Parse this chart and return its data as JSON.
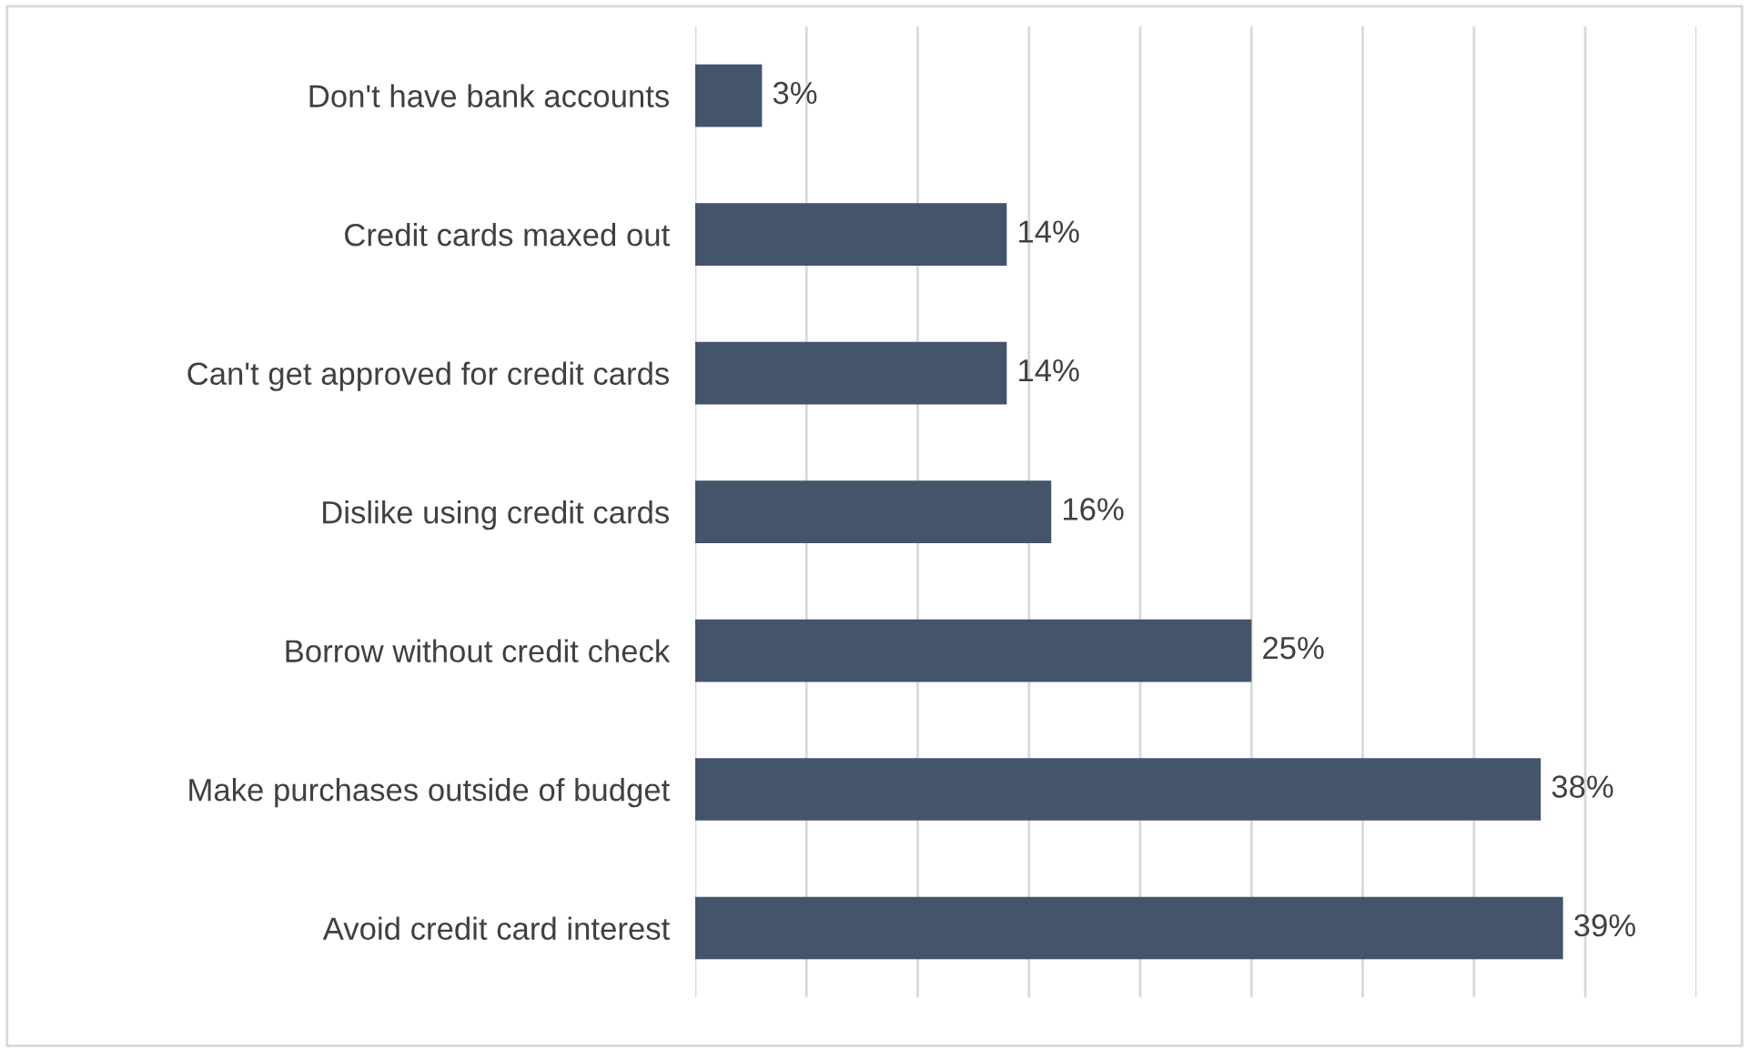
{
  "chart_data": {
    "type": "bar",
    "orientation": "horizontal",
    "categories": [
      "Don't have bank accounts",
      "Credit cards maxed out",
      "Can't get approved for credit cards",
      "Dislike using credit cards",
      "Borrow without credit check",
      "Make purchases outside of budget",
      "Avoid credit card interest"
    ],
    "values": [
      3,
      14,
      14,
      16,
      25,
      38,
      39
    ],
    "value_labels": [
      "3%",
      "14%",
      "14%",
      "16%",
      "25%",
      "38%",
      "39%"
    ],
    "color": "#44546a",
    "xlim": [
      0,
      45
    ],
    "xticks": [
      {
        "value": 0,
        "label": null
      },
      {
        "value": 5,
        "label": null
      },
      {
        "value": 10,
        "label": null
      },
      {
        "value": 15,
        "label": null
      },
      {
        "value": 20,
        "label": null
      },
      {
        "value": 25,
        "label": null
      },
      {
        "value": 30,
        "label": null
      },
      {
        "value": 35,
        "label": null
      },
      {
        "value": 40,
        "label": null
      },
      {
        "value": 45,
        "label": null
      }
    ],
    "grid": "x",
    "tick_labels": "y"
  }
}
